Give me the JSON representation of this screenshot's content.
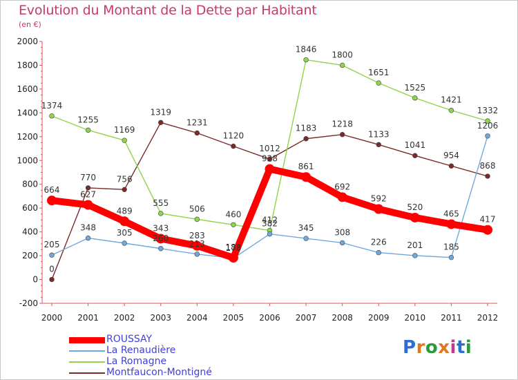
{
  "title": "Evolution du Montant de la Dette par Habitant",
  "unit": "(en €)",
  "brand": {
    "logo_text": "Proxiti",
    "letter_colors": [
      "#2a6fd4",
      "#e0781c",
      "#2a9b3c",
      "#e0781c",
      "#c23a8a",
      "#2a6fd4",
      "#2a9b3c"
    ]
  },
  "chart_data": {
    "type": "line",
    "x": [
      2000,
      2001,
      2002,
      2003,
      2004,
      2005,
      2006,
      2007,
      2008,
      2009,
      2010,
      2011,
      2012
    ],
    "ylim": [
      -200,
      2000
    ],
    "yticks": [
      -200,
      0,
      200,
      400,
      600,
      800,
      1000,
      1200,
      1400,
      1600,
      1800,
      2000
    ],
    "grid": false,
    "legend_position": "bottom-left",
    "series": [
      {
        "name": "ROUSSAY",
        "color": "#ff0000",
        "values": [
          664,
          627,
          489,
          343,
          283,
          183,
          928,
          861,
          692,
          592,
          520,
          465,
          417
        ]
      },
      {
        "name": "La Renaudière",
        "color": "#6fa8dc",
        "values": [
          205,
          348,
          305,
          260,
          213,
          178,
          382,
          345,
          308,
          226,
          201,
          185,
          1206
        ]
      },
      {
        "name": "La Romagne",
        "color": "#8fd44a",
        "values": [
          1374,
          1255,
          1169,
          555,
          506,
          460,
          412,
          1846,
          1800,
          1651,
          1525,
          1421,
          1332
        ]
      },
      {
        "name": "Montfaucon-Montigné",
        "color": "#7a2a2a",
        "values": [
          0,
          770,
          756,
          1319,
          1231,
          1120,
          1012,
          1183,
          1218,
          1133,
          1041,
          954,
          868
        ]
      }
    ]
  }
}
